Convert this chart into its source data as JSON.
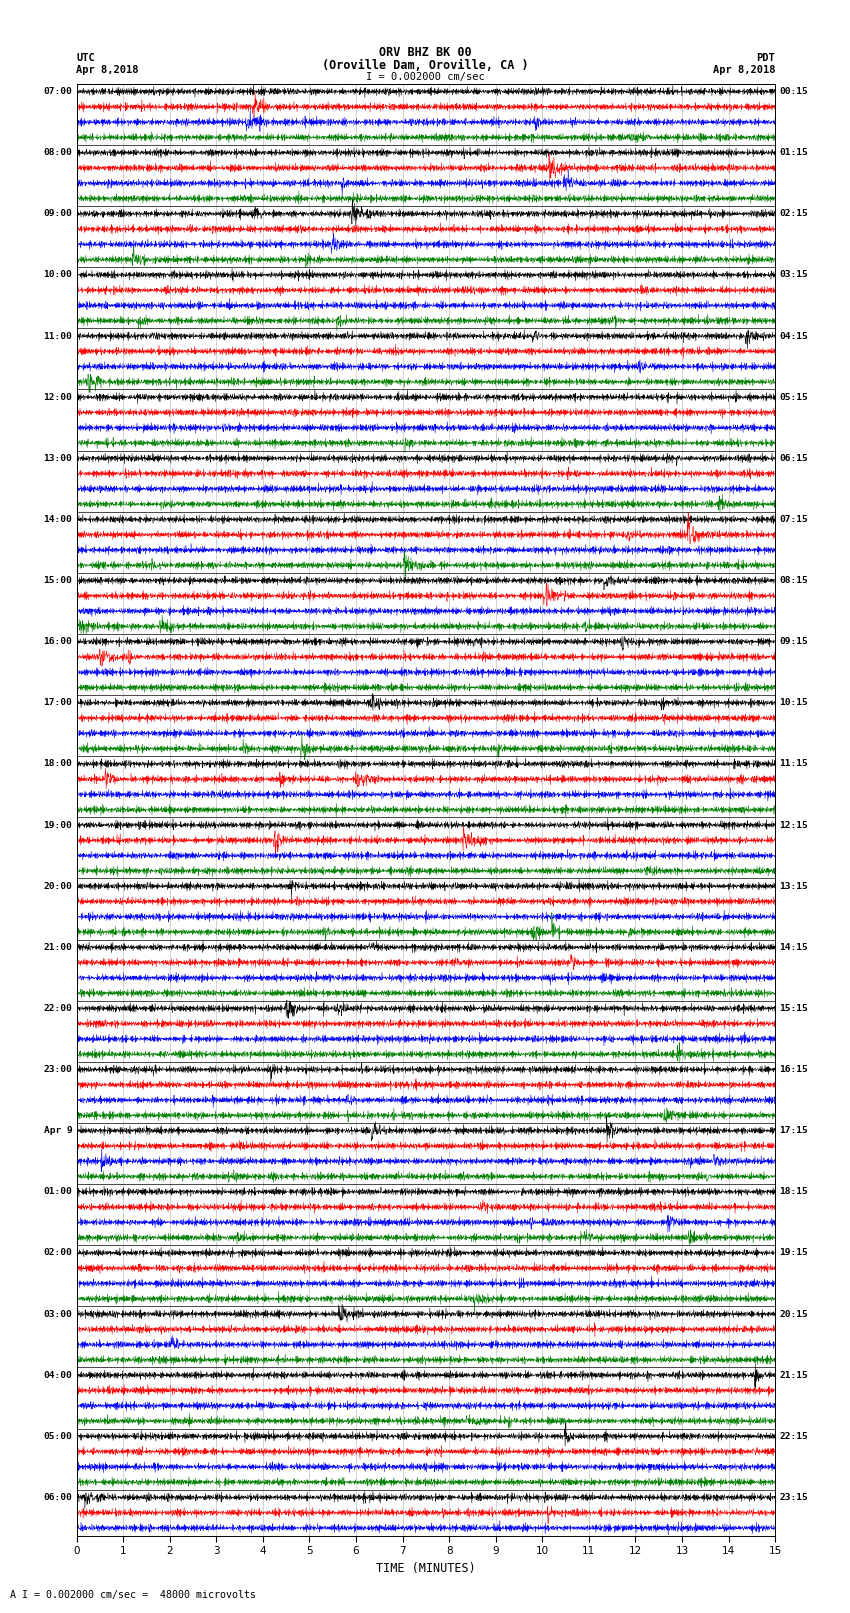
{
  "title_line1": "ORV BHZ BK 00",
  "title_line2": "(Oroville Dam, Oroville, CA )",
  "scale_label": "I = 0.002000 cm/sec",
  "footer_label": "A I = 0.002000 cm/sec =  48000 microvolts",
  "utc_label": "UTC",
  "pdt_label": "PDT",
  "date_left": "Apr 8,2018",
  "date_right": "Apr 8,2018",
  "xlabel": "TIME (MINUTES)",
  "left_times": [
    "07:00",
    "",
    "",
    "",
    "08:00",
    "",
    "",
    "",
    "09:00",
    "",
    "",
    "",
    "10:00",
    "",
    "",
    "",
    "11:00",
    "",
    "",
    "",
    "12:00",
    "",
    "",
    "",
    "13:00",
    "",
    "",
    "",
    "14:00",
    "",
    "",
    "",
    "15:00",
    "",
    "",
    "",
    "16:00",
    "",
    "",
    "",
    "17:00",
    "",
    "",
    "",
    "18:00",
    "",
    "",
    "",
    "19:00",
    "",
    "",
    "",
    "20:00",
    "",
    "",
    "",
    "21:00",
    "",
    "",
    "",
    "22:00",
    "",
    "",
    "",
    "23:00",
    "",
    "",
    "",
    "Apr 9",
    "",
    "",
    "",
    "01:00",
    "",
    "",
    "",
    "02:00",
    "",
    "",
    "",
    "03:00",
    "",
    "",
    "",
    "04:00",
    "",
    "",
    "",
    "05:00",
    "",
    "",
    "",
    "06:00",
    "",
    ""
  ],
  "right_times": [
    "00:15",
    "",
    "",
    "",
    "01:15",
    "",
    "",
    "",
    "02:15",
    "",
    "",
    "",
    "03:15",
    "",
    "",
    "",
    "04:15",
    "",
    "",
    "",
    "05:15",
    "",
    "",
    "",
    "06:15",
    "",
    "",
    "",
    "07:15",
    "",
    "",
    "",
    "08:15",
    "",
    "",
    "",
    "09:15",
    "",
    "",
    "",
    "10:15",
    "",
    "",
    "",
    "11:15",
    "",
    "",
    "",
    "12:15",
    "",
    "",
    "",
    "13:15",
    "",
    "",
    "",
    "14:15",
    "",
    "",
    "",
    "15:15",
    "",
    "",
    "",
    "16:15",
    "",
    "",
    "",
    "17:15",
    "",
    "",
    "",
    "18:15",
    "",
    "",
    "",
    "19:15",
    "",
    "",
    "",
    "20:15",
    "",
    "",
    "",
    "21:15",
    "",
    "",
    "",
    "22:15",
    "",
    "",
    "",
    "23:15",
    "",
    ""
  ],
  "n_rows": 95,
  "colors": [
    "black",
    "red",
    "blue",
    "green"
  ],
  "x_min": 0,
  "x_max": 15,
  "x_ticks": [
    0,
    1,
    2,
    3,
    4,
    5,
    6,
    7,
    8,
    9,
    10,
    11,
    12,
    13,
    14,
    15
  ],
  "noise_amplitude": 0.28,
  "high_freq_amplitude": 0.18,
  "event_probability": 0.15
}
